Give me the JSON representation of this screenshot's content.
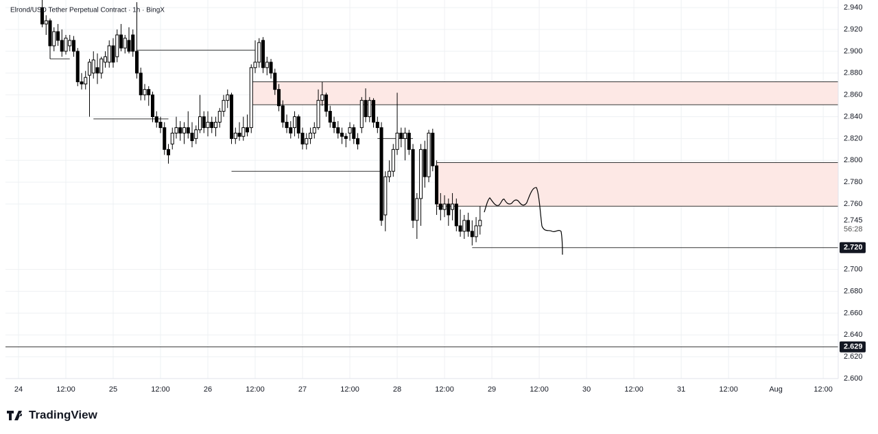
{
  "chart_data": {
    "type": "candlestick",
    "title": "Elrond/USD Tether Perpetual Contract · 1h · BingX",
    "brand": "TradingView",
    "x": [
      6,
      7,
      8,
      9,
      10,
      11,
      12,
      13,
      14,
      15,
      16,
      17,
      18,
      19,
      20,
      21,
      22,
      23,
      24,
      25,
      26,
      27,
      28,
      29,
      30,
      31,
      32,
      33,
      34,
      35,
      36,
      37,
      38,
      39,
      40,
      41,
      42,
      43,
      44,
      45,
      46,
      47,
      48,
      49,
      50,
      51,
      52,
      53,
      54,
      55,
      56,
      57,
      58,
      59,
      60,
      61,
      62,
      63,
      64,
      65,
      66,
      67,
      68,
      69,
      70,
      71,
      72,
      73,
      74,
      75,
      76,
      77,
      78,
      79,
      80,
      81,
      82,
      83,
      84,
      85,
      86,
      87,
      88,
      89,
      90,
      91,
      92,
      93,
      94,
      95,
      96,
      97,
      98,
      99,
      100,
      101,
      102,
      103,
      104,
      105,
      106,
      107,
      108,
      109,
      110,
      111,
      112,
      113,
      114,
      115,
      116,
      117
    ],
    "candles": [
      [
        2.94,
        2.947,
        2.922,
        2.925
      ],
      [
        2.925,
        2.933,
        2.915,
        2.928
      ],
      [
        2.928,
        2.93,
        2.893,
        2.905
      ],
      [
        2.905,
        2.922,
        2.9,
        2.918
      ],
      [
        2.918,
        2.925,
        2.905,
        2.91
      ],
      [
        2.91,
        2.92,
        2.895,
        2.9
      ],
      [
        2.9,
        2.915,
        2.897,
        2.912
      ],
      [
        2.905,
        2.915,
        2.9,
        2.91
      ],
      [
        2.91,
        2.914,
        2.895,
        2.9
      ],
      [
        2.9,
        2.903,
        2.868,
        2.872
      ],
      [
        2.872,
        2.88,
        2.865,
        2.87
      ],
      [
        2.87,
        2.882,
        2.865,
        2.876
      ],
      [
        2.878,
        2.893,
        2.84,
        2.89
      ],
      [
        2.88,
        2.9,
        2.875,
        2.892
      ],
      [
        2.885,
        2.898,
        2.87,
        2.88
      ],
      [
        2.88,
        2.895,
        2.875,
        2.893
      ],
      [
        2.89,
        2.9,
        2.885,
        2.895
      ],
      [
        2.89,
        2.91,
        2.885,
        2.905
      ],
      [
        2.905,
        2.912,
        2.885,
        2.89
      ],
      [
        2.895,
        2.92,
        2.89,
        2.915
      ],
      [
        2.915,
        2.925,
        2.9,
        2.903
      ],
      [
        2.903,
        2.915,
        2.898,
        2.912
      ],
      [
        2.91,
        2.922,
        2.898,
        2.9
      ],
      [
        2.915,
        2.92,
        2.895,
        2.9
      ],
      [
        2.9,
        2.945,
        2.875,
        2.88
      ],
      [
        2.88,
        2.885,
        2.855,
        2.86
      ],
      [
        2.86,
        2.87,
        2.855,
        2.865
      ],
      [
        2.865,
        2.868,
        2.85,
        2.86
      ],
      [
        2.86,
        2.863,
        2.835,
        2.84
      ],
      [
        2.84,
        2.845,
        2.83,
        2.835
      ],
      [
        2.835,
        2.84,
        2.825,
        2.83
      ],
      [
        2.83,
        2.835,
        2.805,
        2.81
      ],
      [
        2.81,
        2.815,
        2.797,
        2.805
      ],
      [
        2.815,
        2.83,
        2.81,
        2.825
      ],
      [
        2.825,
        2.84,
        2.82,
        2.83
      ],
      [
        2.83,
        2.836,
        2.818,
        2.825
      ],
      [
        2.825,
        2.835,
        2.815,
        2.83
      ],
      [
        2.83,
        2.845,
        2.82,
        2.825
      ],
      [
        2.825,
        2.835,
        2.812,
        2.818
      ],
      [
        2.82,
        2.832,
        2.815,
        2.828
      ],
      [
        2.828,
        2.86,
        2.825,
        2.84
      ],
      [
        2.84,
        2.845,
        2.825,
        2.83
      ],
      [
        2.83,
        2.845,
        2.822,
        2.835
      ],
      [
        2.835,
        2.84,
        2.825,
        2.83
      ],
      [
        2.83,
        2.84,
        2.822,
        2.835
      ],
      [
        2.835,
        2.848,
        2.83,
        2.845
      ],
      [
        2.845,
        2.86,
        2.84,
        2.855
      ],
      [
        2.855,
        2.865,
        2.848,
        2.86
      ],
      [
        2.86,
        2.862,
        2.815,
        2.82
      ],
      [
        2.82,
        2.83,
        2.815,
        2.825
      ],
      [
        2.825,
        2.835,
        2.818,
        2.822
      ],
      [
        2.822,
        2.84,
        2.818,
        2.83
      ],
      [
        2.83,
        2.842,
        2.822,
        2.826
      ],
      [
        2.83,
        2.888,
        2.825,
        2.885
      ],
      [
        2.885,
        2.91,
        2.88,
        2.89
      ],
      [
        2.89,
        2.912,
        2.885,
        2.908
      ],
      [
        2.91,
        2.913,
        2.88,
        2.885
      ],
      [
        2.885,
        2.895,
        2.878,
        2.89
      ],
      [
        2.89,
        2.893,
        2.875,
        2.88
      ],
      [
        2.88,
        2.884,
        2.86,
        2.865
      ],
      [
        2.865,
        2.87,
        2.845,
        2.85
      ],
      [
        2.85,
        2.855,
        2.83,
        2.835
      ],
      [
        2.835,
        2.842,
        2.825,
        2.83
      ],
      [
        2.83,
        2.836,
        2.82,
        2.825
      ],
      [
        2.83,
        2.845,
        2.822,
        2.84
      ],
      [
        2.84,
        2.842,
        2.82,
        2.825
      ],
      [
        2.825,
        2.83,
        2.81,
        2.815
      ],
      [
        2.815,
        2.825,
        2.81,
        2.82
      ],
      [
        2.82,
        2.83,
        2.815,
        2.825
      ],
      [
        2.825,
        2.835,
        2.82,
        2.83
      ],
      [
        2.83,
        2.865,
        2.828,
        2.855
      ],
      [
        2.855,
        2.872,
        2.85,
        2.86
      ],
      [
        2.86,
        2.862,
        2.84,
        2.845
      ],
      [
        2.845,
        2.85,
        2.83,
        2.835
      ],
      [
        2.835,
        2.84,
        2.825,
        2.83
      ],
      [
        2.83,
        2.836,
        2.82,
        2.825
      ],
      [
        2.825,
        2.83,
        2.815,
        2.822
      ],
      [
        2.822,
        2.825,
        2.812,
        2.82
      ],
      [
        2.825,
        2.835,
        2.818,
        2.83
      ],
      [
        2.83,
        2.833,
        2.815,
        2.82
      ],
      [
        2.82,
        2.825,
        2.81,
        2.815
      ],
      [
        2.83,
        2.858,
        2.825,
        2.855
      ],
      [
        2.855,
        2.866,
        2.835,
        2.84
      ],
      [
        2.84,
        2.858,
        2.835,
        2.855
      ],
      [
        2.855,
        2.857,
        2.83,
        2.835
      ],
      [
        2.835,
        2.84,
        2.825,
        2.83
      ],
      [
        2.83,
        2.835,
        2.74,
        2.745
      ],
      [
        2.75,
        2.79,
        2.735,
        2.785
      ],
      [
        2.785,
        2.8,
        2.78,
        2.79
      ],
      [
        2.79,
        2.815,
        2.785,
        2.81
      ],
      [
        2.81,
        2.862,
        2.805,
        2.825
      ],
      [
        2.825,
        2.83,
        2.812,
        2.82
      ],
      [
        2.82,
        2.83,
        2.8,
        2.825
      ],
      [
        2.825,
        2.828,
        2.805,
        2.81
      ],
      [
        2.81,
        2.815,
        2.738,
        2.745
      ],
      [
        2.745,
        2.77,
        2.728,
        2.765
      ],
      [
        2.765,
        2.815,
        2.74,
        2.81
      ],
      [
        2.81,
        2.818,
        2.775,
        2.785
      ],
      [
        2.785,
        2.828,
        2.78,
        2.825
      ],
      [
        2.825,
        2.829,
        2.79,
        2.795
      ],
      [
        2.795,
        2.8,
        2.75,
        2.76
      ],
      [
        2.76,
        2.77,
        2.745,
        2.755
      ],
      [
        2.755,
        2.768,
        2.748,
        2.76
      ],
      [
        2.76,
        2.765,
        2.74,
        2.75
      ],
      [
        2.755,
        2.77,
        2.745,
        2.76
      ],
      [
        2.76,
        2.765,
        2.735,
        2.74
      ],
      [
        2.74,
        2.755,
        2.73,
        2.735
      ],
      [
        2.735,
        2.75,
        2.728,
        2.745
      ],
      [
        2.745,
        2.752,
        2.73,
        2.735
      ],
      [
        2.735,
        2.745,
        2.722,
        2.73
      ],
      [
        2.73,
        2.748,
        2.725,
        2.74
      ],
      [
        2.74,
        2.758,
        2.732,
        2.745
      ]
    ],
    "xlim": [
      -3.3,
      207.8
    ],
    "xticks": [
      {
        "value": 0,
        "label": "24"
      },
      {
        "value": 12,
        "label": "12:00"
      },
      {
        "value": 24,
        "label": "25"
      },
      {
        "value": 36,
        "label": "12:00"
      },
      {
        "value": 48,
        "label": "26"
      },
      {
        "value": 60,
        "label": "12:00"
      },
      {
        "value": 72,
        "label": "27"
      },
      {
        "value": 84,
        "label": "12:00"
      },
      {
        "value": 96,
        "label": "28"
      },
      {
        "value": 108,
        "label": "12:00"
      },
      {
        "value": 120,
        "label": "29"
      },
      {
        "value": 132,
        "label": "12:00"
      },
      {
        "value": 144,
        "label": "30"
      },
      {
        "value": 156,
        "label": "12:00"
      },
      {
        "value": 168,
        "label": "31"
      },
      {
        "value": 180,
        "label": "12:00"
      },
      {
        "value": 192,
        "label": "Aug"
      },
      {
        "value": 204,
        "label": "12:00"
      }
    ],
    "ylim": [
      2.6,
      2.947
    ],
    "yticks": [
      {
        "value": 2.94,
        "label": "2.940"
      },
      {
        "value": 2.92,
        "label": "2.920"
      },
      {
        "value": 2.9,
        "label": "2.900"
      },
      {
        "value": 2.88,
        "label": "2.880"
      },
      {
        "value": 2.86,
        "label": "2.860"
      },
      {
        "value": 2.84,
        "label": "2.840"
      },
      {
        "value": 2.82,
        "label": "2.820"
      },
      {
        "value": 2.8,
        "label": "2.800"
      },
      {
        "value": 2.78,
        "label": "2.780"
      },
      {
        "value": 2.76,
        "label": "2.760"
      },
      {
        "value": 2.7,
        "label": "2.700"
      },
      {
        "value": 2.68,
        "label": "2.680"
      },
      {
        "value": 2.66,
        "label": "2.660"
      },
      {
        "value": 2.64,
        "label": "2.640"
      },
      {
        "value": 2.62,
        "label": "2.620"
      },
      {
        "value": 2.6,
        "label": "2.600"
      }
    ],
    "grid": true,
    "up_color": "#ffffff",
    "down_color": "#000000",
    "zones": [
      {
        "top": 2.872,
        "bottom": 2.851,
        "from": 59,
        "color": "#fde8e5"
      },
      {
        "top": 2.798,
        "bottom": 2.758,
        "from": 106,
        "color": "#fde8e5"
      }
    ],
    "levels": [
      {
        "value": 2.893,
        "from": 8,
        "to": 13
      },
      {
        "value": 2.838,
        "from": 19,
        "to": 38
      },
      {
        "value": 2.901,
        "from": 30,
        "to": 60
      },
      {
        "value": 2.79,
        "from": 54,
        "to": 92
      },
      {
        "value": 2.82,
        "from": 91,
        "to": 100
      },
      {
        "value": 2.72,
        "from": 115,
        "to": null
      },
      {
        "value": 2.629,
        "from": null,
        "to": null
      }
    ],
    "last_price": {
      "value": 2.745,
      "label": "2.745",
      "countdown": "56:28"
    },
    "price_tags": [
      {
        "value": 2.72,
        "label": "2.720"
      },
      {
        "value": 2.629,
        "label": "2.629"
      }
    ]
  }
}
